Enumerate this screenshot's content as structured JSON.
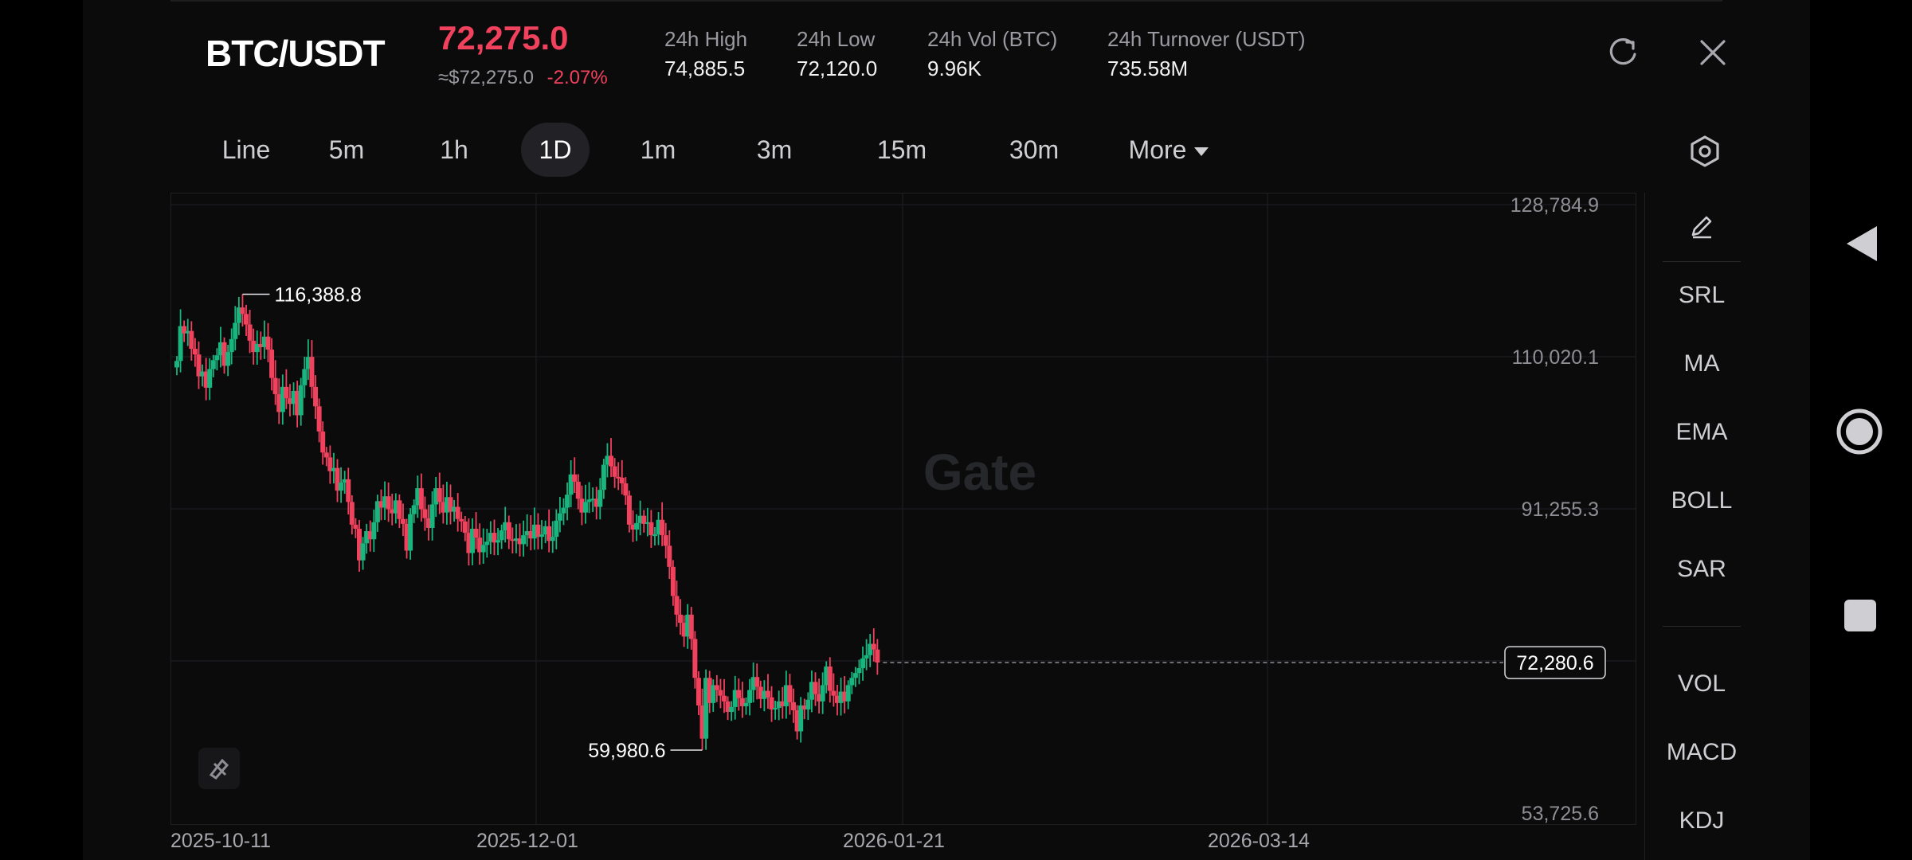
{
  "header": {
    "pair": "BTC/USDT",
    "price": "72,275.0",
    "approx": "≈$72,275.0",
    "change": "-2.07%",
    "stats": [
      {
        "label": "24h  High",
        "value": "74,885.5"
      },
      {
        "label": "24h  Low",
        "value": "72,120.0"
      },
      {
        "label": "24h  Vol (BTC)",
        "value": "9.96K"
      },
      {
        "label": "24h  Turnover (USDT)",
        "value": "735.58M"
      }
    ],
    "icons": {
      "refresh": "refresh-icon",
      "close": "close-icon"
    }
  },
  "tabs": [
    "Line",
    "5m",
    "1h",
    "1D",
    "1m",
    "3m",
    "15m",
    "30m",
    "More"
  ],
  "active_tab": "1D",
  "side_panel": {
    "items_top": [
      "SRL",
      "MA",
      "EMA",
      "BOLL",
      "SAR"
    ],
    "items_bottom": [
      "VOL",
      "MACD",
      "KDJ"
    ]
  },
  "watermark": "Gate",
  "chart_data": {
    "type": "candlestick",
    "y_ticks": [
      "128,784.9",
      "110,020.1",
      "91,255.3",
      "53,725.6"
    ],
    "ylim": [
      53725.6,
      128784.9
    ],
    "x_ticks": [
      "2025-10-11",
      "2025-12-01",
      "2026-01-21",
      "2026-03-14"
    ],
    "annotations": {
      "high_label": "116,388.8",
      "low_label": "59,980.6",
      "last_price_label": "72,280.6"
    },
    "closes": [
      109500,
      113800,
      112900,
      113200,
      111000,
      110300,
      107600,
      108200,
      106200,
      108500,
      109600,
      110200,
      111800,
      108900,
      110600,
      112200,
      114200,
      116100,
      115300,
      114000,
      112000,
      110600,
      111600,
      111200,
      112500,
      110900,
      107400,
      105400,
      103200,
      106300,
      104900,
      104200,
      105800,
      102800,
      106500,
      108500,
      110000,
      106300,
      103900,
      100800,
      98200,
      97600,
      95900,
      96300,
      93500,
      94500,
      94900,
      92100,
      89300,
      88800,
      84900,
      87000,
      88500,
      87500,
      89600,
      92200,
      91400,
      92800,
      91200,
      90700,
      92300,
      90000,
      89400,
      86100,
      90600,
      91700,
      93800,
      91200,
      90100,
      88900,
      91800,
      93800,
      92100,
      90800,
      92700,
      90900,
      91500,
      90000,
      89700,
      88300,
      85800,
      88800,
      87700,
      85900,
      86800,
      87200,
      88300,
      87100,
      87400,
      88600,
      89600,
      87500,
      87300,
      87600,
      86900,
      88000,
      88500,
      87600,
      89300,
      87800,
      88100,
      89100,
      87300,
      87800,
      89800,
      90700,
      91400,
      93000,
      95500,
      94600,
      92500,
      90800,
      92100,
      92400,
      92500,
      91500,
      93600,
      96700,
      97800,
      96500,
      95200,
      95100,
      94400,
      92900,
      89300,
      88700,
      89500,
      90400,
      89400,
      89600,
      88000,
      88100,
      89900,
      88000,
      86700,
      84100,
      80500,
      78200,
      77200,
      75500,
      78200,
      75200,
      70400,
      67000,
      62900,
      70400,
      67300,
      69500,
      68900,
      68200,
      67500,
      66200,
      66800,
      68900,
      67900,
      66900,
      67300,
      68900,
      70500,
      69300,
      67800,
      68800,
      68000,
      66500,
      66700,
      67500,
      66900,
      69500,
      67400,
      66400,
      63800,
      67000,
      66500,
      67700,
      69900,
      68400,
      67500,
      69500,
      71800,
      68800,
      68200,
      67300,
      68700,
      67500,
      69500,
      70400,
      71000,
      71600,
      72800,
      73200,
      74600,
      73900,
      72300
    ]
  }
}
